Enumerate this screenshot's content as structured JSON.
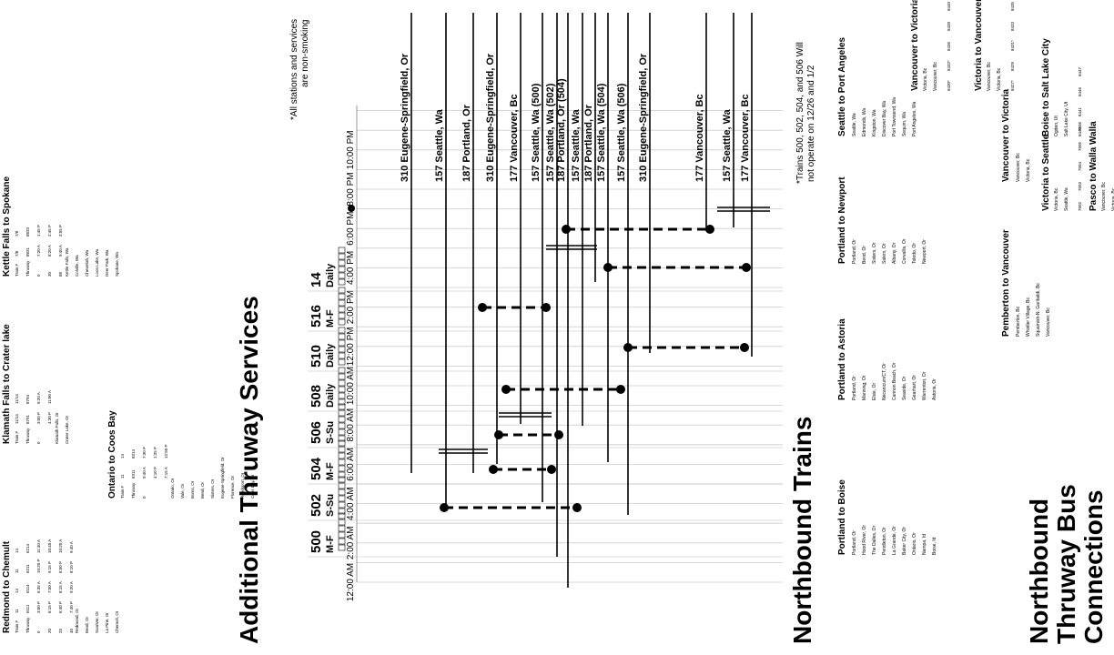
{
  "headings": {
    "additional": "Additional Thruway Services",
    "northbound_trains": "Northbound Trains",
    "bus_connections": [
      "Northbound",
      "Thruway Bus",
      "Connections"
    ]
  },
  "notes": {
    "non_smoking": [
      "*All stations and services",
      "are non-smoking"
    ],
    "trains_note": [
      "*Trains 500, 502, 504, and 506 Will",
      "not operate on 12/26 and 1/2"
    ]
  },
  "time_axis": [
    "12:00 AM",
    "2:00 AM",
    "4:00 AM",
    "6:00 AM",
    "8:00 AM",
    "10:00 AM",
    "12:00 PM",
    "2:00 PM",
    "4:00 PM",
    "6:00 PM",
    "8:00 PM",
    "10:00 PM"
  ],
  "trains": [
    {
      "num": "500",
      "days": "M-F"
    },
    {
      "num": "502",
      "days": "S-Su"
    },
    {
      "num": "504",
      "days": "M-F"
    },
    {
      "num": "506",
      "days": "S-Su"
    },
    {
      "num": "508",
      "days": "Daily"
    },
    {
      "num": "510",
      "days": "Daily"
    },
    {
      "num": "516",
      "days": "M-F"
    },
    {
      "num": "14",
      "days": "Daily"
    }
  ],
  "destinations": [
    "310 Eugene-Springfield, Or",
    "157 Seattle, Wa",
    "187 Portland, Or",
    "310 Eugene-Springfield, Or",
    "177 Vancouver, Bc",
    "157 Seattle, Wa (500)",
    "157 Seattle, Wa (502)",
    "187 Portland, Or (504)",
    "157 Seattle, Wa",
    "187 Portland, Or",
    "157 Seattle, Wa (504)",
    "157 Seattle, Wa (506)",
    "310 Eugene-Springfield, Or",
    "177 Vancouver, Bc",
    "157 Seattle, Wa",
    "177 Vancouver, Bc"
  ],
  "left_tables": [
    {
      "title": [
        "Redmond",
        "to Chemult"
      ],
      "rows": [
        [
          "Train #",
          "11",
          "14",
          "11",
          "14"
        ],
        [
          "Thruway",
          "6111",
          "6114",
          "6211",
          "6214"
        ],
        [
          "0",
          "3:50 P",
          "6:35 A",
          "10:20 P",
          "11:40 A"
        ],
        [
          "20",
          "6:15 P",
          "7:50 A",
          "9:15 P",
          "10:40 A"
        ],
        [
          "25",
          "6:40 P",
          "8:15 A",
          "8:50 P",
          "10:20 A"
        ],
        [
          "40",
          "7:40 P",
          "9:20 A",
          "8:10 P",
          "9:40 A"
        ]
      ],
      "stops": [
        "Redmond, Or",
        "Bend, Or",
        "Sunriver, Or",
        "La Pine, Or",
        "Chemult, Or"
      ]
    },
    {
      "title": [
        "Klamath Falls",
        "to Crater lake"
      ],
      "rows": [
        [
          "Train #",
          "11/14",
          "11/14"
        ],
        [
          "Thruway",
          "8791",
          "8794"
        ],
        [
          "0",
          "3:00 P",
          "9:20 A"
        ],
        [
          "",
          "4:30 P",
          "11:00 A"
        ]
      ],
      "stops": [
        "Klamath Falls, Or",
        "Crater Lake, Or"
      ]
    },
    {
      "title": [
        "Kettle Falls",
        "to Spokane"
      ],
      "rows": [
        [
          "Train #",
          "7/8",
          "7/8"
        ],
        [
          "Thruway",
          "8831",
          "8833"
        ],
        [
          "0",
          "7:20 A",
          "1:45 P"
        ],
        [
          "30",
          "8:20 A",
          "2:45 P"
        ],
        [
          "88",
          "9:40 A",
          "3:55 P"
        ]
      ],
      "stops": [
        "Kettle Falls, Wa",
        "Colville, Wa",
        "Chewelah, Wa",
        "Loon Lake, Wa",
        "Deer Park, Wa",
        "Spokane, Wa"
      ]
    },
    {
      "title": [
        "Ontario",
        "to Coos Bay"
      ],
      "rows": [
        [
          "Train #",
          "11",
          "14"
        ],
        [
          "Thruway",
          "8311",
          "8314"
        ],
        [
          "0",
          "9:40 A",
          "7:30 P"
        ],
        [
          "",
          "4:10 P",
          "1:25 P"
        ],
        [
          "",
          "7:15 A",
          "12:50 P"
        ]
      ],
      "stops": [
        "Ontario, Or",
        "Vale, Or",
        "Burns, Or",
        "Bend, Or",
        "Sisters, Or",
        "Eugene-Springfield, Or",
        "Florence, Or",
        "Reedsport, Or",
        "Coos Bay, Or"
      ]
    }
  ],
  "top_tables": [
    {
      "title": [
        "Vancouver",
        "to Victoria"
      ],
      "stops": [
        "Victoria, Bc",
        "Vancouver, Bc"
      ],
      "cols": [
        "8430*",
        "8432*",
        "8436",
        "8438",
        "8440"
      ]
    },
    {
      "title": [
        "Victoria to",
        "Vancouver"
      ],
      "stops": [
        "Vancouver, Bc",
        "Victoria, Bc"
      ],
      "cols": [
        "8427*",
        "8429",
        "8431*",
        "8433",
        "8435"
      ]
    },
    {
      "title": [
        "Victoria to",
        "Seattle"
      ],
      "stops": [
        "Victoria, Bc",
        "Seattle, Wa"
      ],
      "cols": [
        "7602",
        "7603",
        "7604",
        "7605",
        "7606"
      ]
    },
    {
      "title": [
        "Pasco to",
        "Walla Walla"
      ],
      "stops": [
        "Vancouver, Bc",
        "Victoria, Bc"
      ],
      "cols": [
        "27",
        "28",
        "28"
      ]
    },
    {
      "title": [
        "Boise to Salt Lake City"
      ],
      "stops": [
        "Ogden, Ut",
        "Salt Lake City, Ut"
      ],
      "cols": [
        "8440",
        "8441",
        "8446",
        "8447"
      ]
    }
  ],
  "bottom_tables": [
    {
      "title": [
        "Portland",
        "to Boise"
      ],
      "stops": [
        "Portland, Or",
        "Hood River, Or",
        "The Dalles, Or",
        "Pendleton, Or",
        "La Grande, Or",
        "Baker City, Or",
        "Ontario, Or",
        "Nampa, Id",
        "Boise, Id"
      ]
    },
    {
      "title": [
        "Portland",
        "to Astoria"
      ],
      "stops": [
        "Portland, Or",
        "Manning, Or",
        "Elsie, Or",
        "Necanicum/CT, Or",
        "Cannon Beach, Or",
        "Seaside, Or",
        "Gearhart, Or",
        "Warrenton, Or",
        "Astoria, Or"
      ]
    },
    {
      "title": [
        "Portland",
        "to Newport"
      ],
      "stops": [
        "Portland, Or",
        "Bend, Or",
        "Sisters, Or",
        "Salem, Or",
        "Albany, Or",
        "Corvallis, Or",
        "Toledo, Or",
        "Newport, Or"
      ]
    },
    {
      "title": [
        "Seattle to",
        "Port Angeles"
      ],
      "stops": [
        "Seattle, Wa",
        "Edmonds, Wa",
        "Kingston, Wa",
        "Discover Bay, Wa",
        "Port Townsend, Wa",
        "Sequim, Wa",
        "Port Angeles, Wa"
      ]
    },
    {
      "title": [
        "Pemberton",
        "to Vancouver"
      ],
      "stops": [
        "Pemberton, Bc",
        "Whistler Village, Bc",
        "Squamish-N. Garibaldi, Bc",
        "Vancouver, Bc"
      ]
    },
    {
      "title": [
        "Vancouver",
        "to Victoria"
      ],
      "stops": [
        "Vancouver, Bc",
        "Victoria, Bc"
      ]
    }
  ]
}
